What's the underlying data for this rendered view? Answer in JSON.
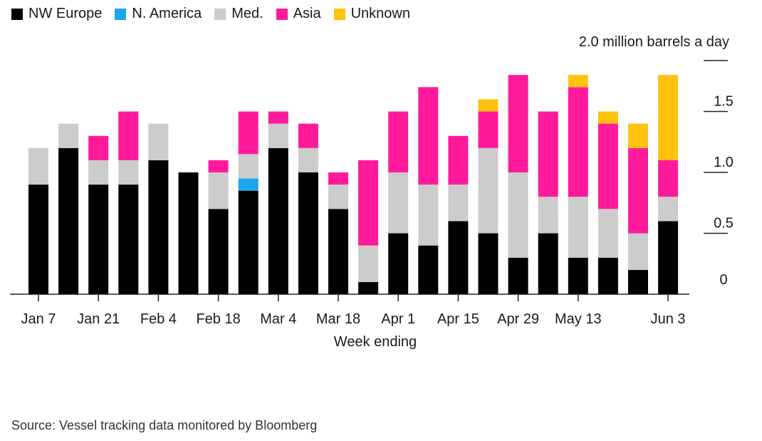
{
  "chart_data": {
    "type": "bar",
    "stacked": true,
    "title": "",
    "unit_label": "2.0 million barrels a day",
    "xlabel": "Week ending",
    "ylabel": "",
    "ylim": [
      0,
      1.9
    ],
    "y_ticks": [
      0,
      0.5,
      1.0,
      1.5
    ],
    "y_tick_labels": [
      "0",
      "0.5",
      "1.0",
      "1.5"
    ],
    "categories": [
      "Jan 7",
      "Jan 14",
      "Jan 21",
      "Jan 28",
      "Feb 4",
      "Feb 11",
      "Feb 18",
      "Feb 25",
      "Mar 4",
      "Mar 11",
      "Mar 18",
      "Mar 25",
      "Apr 1",
      "Apr 8",
      "Apr 15",
      "Apr 22",
      "Apr 29",
      "May 6",
      "May 13",
      "May 20",
      "May 27",
      "Jun 3"
    ],
    "x_tick_labels": [
      {
        "index": 0,
        "label": "Jan 7"
      },
      {
        "index": 2,
        "label": "Jan 21"
      },
      {
        "index": 4,
        "label": "Feb 4"
      },
      {
        "index": 6,
        "label": "Feb 18"
      },
      {
        "index": 8,
        "label": "Mar 4"
      },
      {
        "index": 10,
        "label": "Mar 18"
      },
      {
        "index": 12,
        "label": "Apr 1"
      },
      {
        "index": 14,
        "label": "Apr 15"
      },
      {
        "index": 16,
        "label": "Apr 29"
      },
      {
        "index": 18,
        "label": "May 13"
      },
      {
        "index": 21,
        "label": "Jun 3"
      }
    ],
    "series": [
      {
        "name": "NW Europe",
        "color": "#000000",
        "values": [
          0.9,
          1.2,
          0.9,
          0.9,
          1.1,
          1.0,
          0.7,
          0.85,
          1.2,
          1.0,
          0.7,
          0.1,
          0.5,
          0.4,
          0.6,
          0.5,
          0.3,
          0.5,
          0.3,
          0.3,
          0.2,
          0.6
        ]
      },
      {
        "name": "N. America",
        "color": "#1aa7ec",
        "values": [
          0,
          0,
          0,
          0,
          0,
          0,
          0,
          0.1,
          0,
          0,
          0,
          0,
          0,
          0,
          0,
          0,
          0,
          0,
          0,
          0,
          0,
          0
        ]
      },
      {
        "name": "Med.",
        "color": "#cccccc",
        "values": [
          0.3,
          0.2,
          0.2,
          0.2,
          0.3,
          0,
          0.3,
          0.2,
          0.2,
          0.2,
          0.2,
          0.3,
          0.5,
          0.5,
          0.3,
          0.7,
          0.7,
          0.3,
          0.5,
          0.4,
          0.3,
          0.2
        ]
      },
      {
        "name": "Asia",
        "color": "#ff1a9c",
        "values": [
          0,
          0,
          0.2,
          0.4,
          0,
          0,
          0.1,
          0.35,
          0.1,
          0.2,
          0.1,
          0.7,
          0.5,
          0.8,
          0.4,
          0.3,
          0.8,
          0.7,
          0.9,
          0.7,
          0.7,
          0.3
        ]
      },
      {
        "name": "Unknown",
        "color": "#ffc20e",
        "values": [
          0,
          0,
          0,
          0,
          0,
          0,
          0,
          0,
          0,
          0,
          0,
          0,
          0,
          0,
          0,
          0.1,
          0,
          0,
          0.1,
          0.1,
          0.2,
          0.7
        ]
      }
    ],
    "source": "Source: Vessel tracking data monitored by Bloomberg"
  }
}
